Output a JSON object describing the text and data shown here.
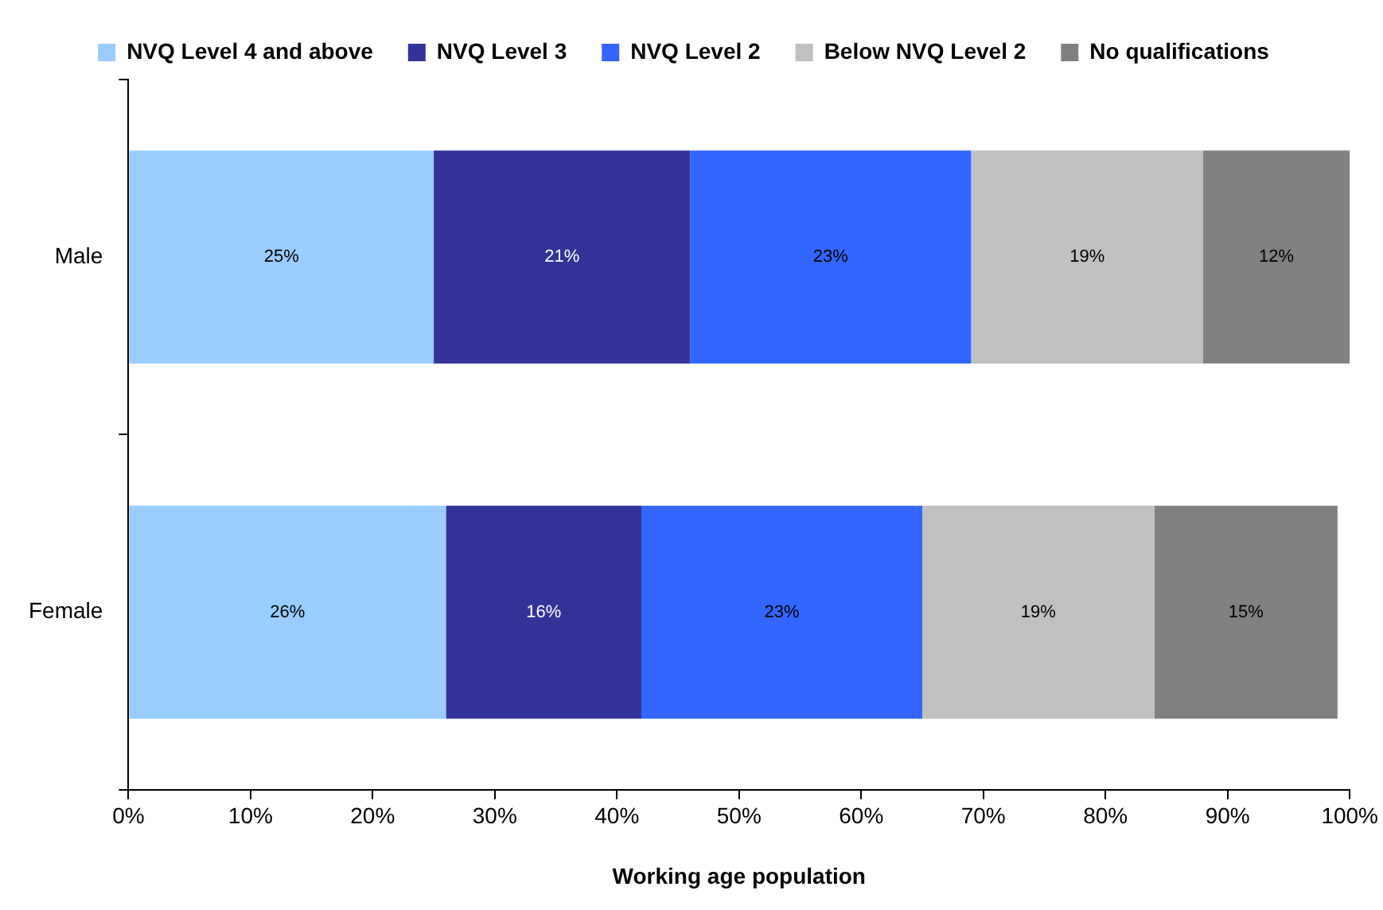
{
  "chart_data": {
    "type": "bar",
    "orientation": "horizontal",
    "stacked": true,
    "xlabel": "Working age population",
    "categories": [
      "Male",
      "Female"
    ],
    "series": [
      {
        "name": "NVQ Level 4 and above",
        "color": "#99ccff",
        "values": [
          25,
          26
        ],
        "value_labels": [
          "25%",
          "26%"
        ]
      },
      {
        "name": "NVQ Level 3",
        "color": "#333399",
        "values": [
          21,
          16
        ],
        "value_labels": [
          "21%",
          "16%"
        ]
      },
      {
        "name": "NVQ Level 2",
        "color": "#3366ff",
        "values": [
          23,
          23
        ],
        "value_labels": [
          "23%",
          "23%"
        ]
      },
      {
        "name": "Below NVQ Level 2",
        "color": "#c0c0c0",
        "values": [
          19,
          19
        ],
        "value_labels": [
          "19%",
          "19%"
        ]
      },
      {
        "name": "No qualifications",
        "color": "#808080",
        "values": [
          12,
          15
        ],
        "value_labels": [
          "12%",
          "15%"
        ]
      }
    ],
    "xlim": [
      0,
      100
    ],
    "xticks": [
      {
        "value": 0,
        "label": "0%"
      },
      {
        "value": 10,
        "label": "10%"
      },
      {
        "value": 20,
        "label": "20%"
      },
      {
        "value": 30,
        "label": "30%"
      },
      {
        "value": 40,
        "label": "40%"
      },
      {
        "value": 50,
        "label": "50%"
      },
      {
        "value": 60,
        "label": "60%"
      },
      {
        "value": 70,
        "label": "70%"
      },
      {
        "value": 80,
        "label": "80%"
      },
      {
        "value": 90,
        "label": "90%"
      },
      {
        "value": 100,
        "label": "100%"
      }
    ],
    "grid": false,
    "legend": "top"
  }
}
